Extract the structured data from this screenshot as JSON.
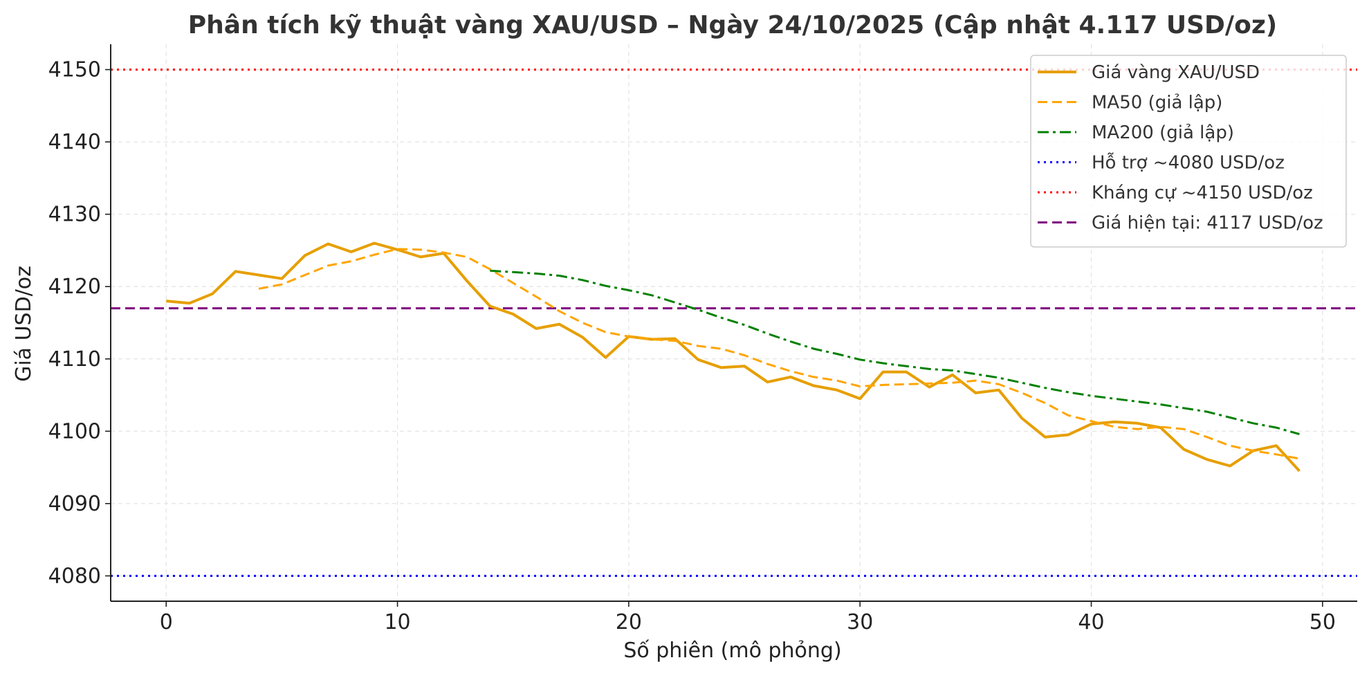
{
  "chart_data": {
    "type": "line",
    "title": "Phân tích kỹ thuật vàng XAU/USD – Ngày 24/10/2025 (Cập nhật 4.117 USD/oz)",
    "xlabel": "Số phiên (mô phỏng)",
    "ylabel": "Giá USD/oz",
    "xlim": [
      -2.4,
      51.5
    ],
    "ylim": [
      4076.5,
      4153.5
    ],
    "xticks": [
      0,
      10,
      20,
      30,
      40,
      50
    ],
    "yticks": [
      4080,
      4090,
      4100,
      4110,
      4120,
      4130,
      4140,
      4150
    ],
    "grid": true,
    "legend_position": "top-right",
    "series": [
      {
        "name": "Giá vàng XAU/USD",
        "style": "solid",
        "color": "#E69F00",
        "x": [
          0,
          1,
          2,
          3,
          4,
          5,
          6,
          7,
          8,
          9,
          10,
          11,
          12,
          13,
          14,
          15,
          16,
          17,
          18,
          19,
          20,
          21,
          22,
          23,
          24,
          25,
          26,
          27,
          28,
          29,
          30,
          31,
          32,
          33,
          34,
          35,
          36,
          37,
          38,
          39,
          40,
          41,
          42,
          43,
          44,
          45,
          46,
          47,
          48,
          49
        ],
        "values": [
          4118.0,
          4117.7,
          4119.0,
          4122.1,
          4121.6,
          4121.1,
          4124.3,
          4125.9,
          4124.8,
          4126.0,
          4125.1,
          4124.1,
          4124.6,
          4120.8,
          4117.3,
          4116.2,
          4114.2,
          4114.8,
          4113.0,
          4110.2,
          4113.1,
          4112.7,
          4112.8,
          4109.9,
          4108.8,
          4109.0,
          4106.8,
          4107.5,
          4106.3,
          4105.7,
          4104.5,
          4108.2,
          4108.2,
          4106.1,
          4107.8,
          4105.3,
          4105.7,
          4101.8,
          4099.2,
          4099.5,
          4101.0,
          4101.3,
          4101.1,
          4100.5,
          4097.5,
          4096.1,
          4095.2,
          4097.3,
          4098.0,
          4094.5
        ]
      },
      {
        "name": "MA50 (giả lập)",
        "style": "dashed",
        "color": "#FFA500",
        "x": [
          4,
          5,
          6,
          7,
          8,
          9,
          10,
          11,
          12,
          13,
          14,
          15,
          16,
          17,
          18,
          19,
          20,
          21,
          22,
          23,
          24,
          25,
          26,
          27,
          28,
          29,
          30,
          31,
          32,
          33,
          34,
          35,
          36,
          37,
          38,
          39,
          40,
          41,
          42,
          43,
          44,
          45,
          46,
          47,
          48,
          49
        ],
        "values": [
          4119.7,
          4120.3,
          4121.6,
          4122.9,
          4123.5,
          4124.4,
          4125.2,
          4125.1,
          4124.7,
          4124.1,
          4122.4,
          4120.5,
          4118.6,
          4116.6,
          4115.0,
          4113.7,
          4113.1,
          4112.7,
          4112.5,
          4111.8,
          4111.4,
          4110.5,
          4109.3,
          4108.3,
          4107.5,
          4107.0,
          4106.2,
          4106.4,
          4106.5,
          4106.6,
          4106.7,
          4107.0,
          4106.5,
          4105.3,
          4103.9,
          4102.2,
          4101.4,
          4100.6,
          4100.3,
          4100.6,
          4100.3,
          4099.2,
          4098.0,
          4097.3,
          4096.8,
          4096.2
        ]
      },
      {
        "name": "MA200 (giả lập)",
        "style": "dashdot",
        "color": "#008000",
        "x": [
          14,
          15,
          16,
          17,
          18,
          19,
          20,
          21,
          22,
          23,
          24,
          25,
          26,
          27,
          28,
          29,
          30,
          31,
          32,
          33,
          34,
          35,
          36,
          37,
          38,
          39,
          40,
          41,
          42,
          43,
          44,
          45,
          46,
          47,
          48,
          49
        ],
        "values": [
          4122.2,
          4122.0,
          4121.8,
          4121.5,
          4120.9,
          4120.1,
          4119.5,
          4118.8,
          4117.8,
          4116.8,
          4115.7,
          4114.7,
          4113.5,
          4112.4,
          4111.4,
          4110.7,
          4109.9,
          4109.4,
          4109.0,
          4108.6,
          4108.4,
          4107.9,
          4107.4,
          4106.7,
          4106.0,
          4105.4,
          4104.9,
          4104.5,
          4104.1,
          4103.7,
          4103.2,
          4102.7,
          4101.9,
          4101.1,
          4100.5,
          4099.6
        ]
      },
      {
        "name": "Hỗ trợ ~4080 USD/oz",
        "style": "dotted",
        "color": "#0000FF",
        "hline": 4080
      },
      {
        "name": "Kháng cự ~4150 USD/oz",
        "style": "dotted",
        "color": "#FF0000",
        "hline": 4150
      },
      {
        "name": "Giá hiện tại: 4117 USD/oz",
        "style": "dashed",
        "color": "#800080",
        "hline": 4117
      }
    ]
  }
}
